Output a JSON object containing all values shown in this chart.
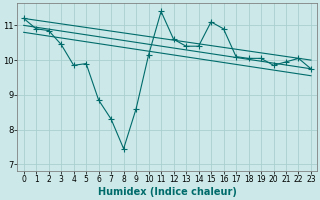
{
  "title": "",
  "xlabel": "Humidex (Indice chaleur)",
  "ylabel": "",
  "bg_color": "#cce8e8",
  "grid_color": "#aacfcf",
  "line_color": "#006b6b",
  "xlim": [
    -0.5,
    23.5
  ],
  "ylim": [
    6.8,
    11.65
  ],
  "xticks": [
    0,
    1,
    2,
    3,
    4,
    5,
    6,
    7,
    8,
    9,
    10,
    11,
    12,
    13,
    14,
    15,
    16,
    17,
    18,
    19,
    20,
    21,
    22,
    23
  ],
  "yticks": [
    7,
    8,
    9,
    10,
    11
  ],
  "line1_x": [
    0,
    1,
    2,
    3,
    4,
    5,
    6,
    7,
    8,
    9,
    10,
    11,
    12,
    13,
    14,
    15,
    16,
    17,
    18,
    19,
    20,
    21,
    22,
    23
  ],
  "line1_y": [
    11.2,
    10.9,
    10.85,
    10.45,
    9.85,
    9.9,
    8.85,
    8.3,
    7.45,
    8.6,
    10.15,
    11.4,
    10.6,
    10.4,
    10.4,
    11.1,
    10.9,
    10.1,
    10.05,
    10.05,
    9.85,
    9.95,
    10.05,
    9.75
  ],
  "line2_x": [
    0,
    23
  ],
  "line2_y": [
    11.2,
    10.0
  ],
  "line3_x": [
    0,
    23
  ],
  "line3_y": [
    11.0,
    9.75
  ],
  "line4_x": [
    0,
    23
  ],
  "line4_y": [
    10.8,
    9.55
  ],
  "marker_style": "+",
  "marker_size": 4,
  "line_width": 0.8,
  "font_size_label": 7,
  "font_size_tick": 5.5
}
